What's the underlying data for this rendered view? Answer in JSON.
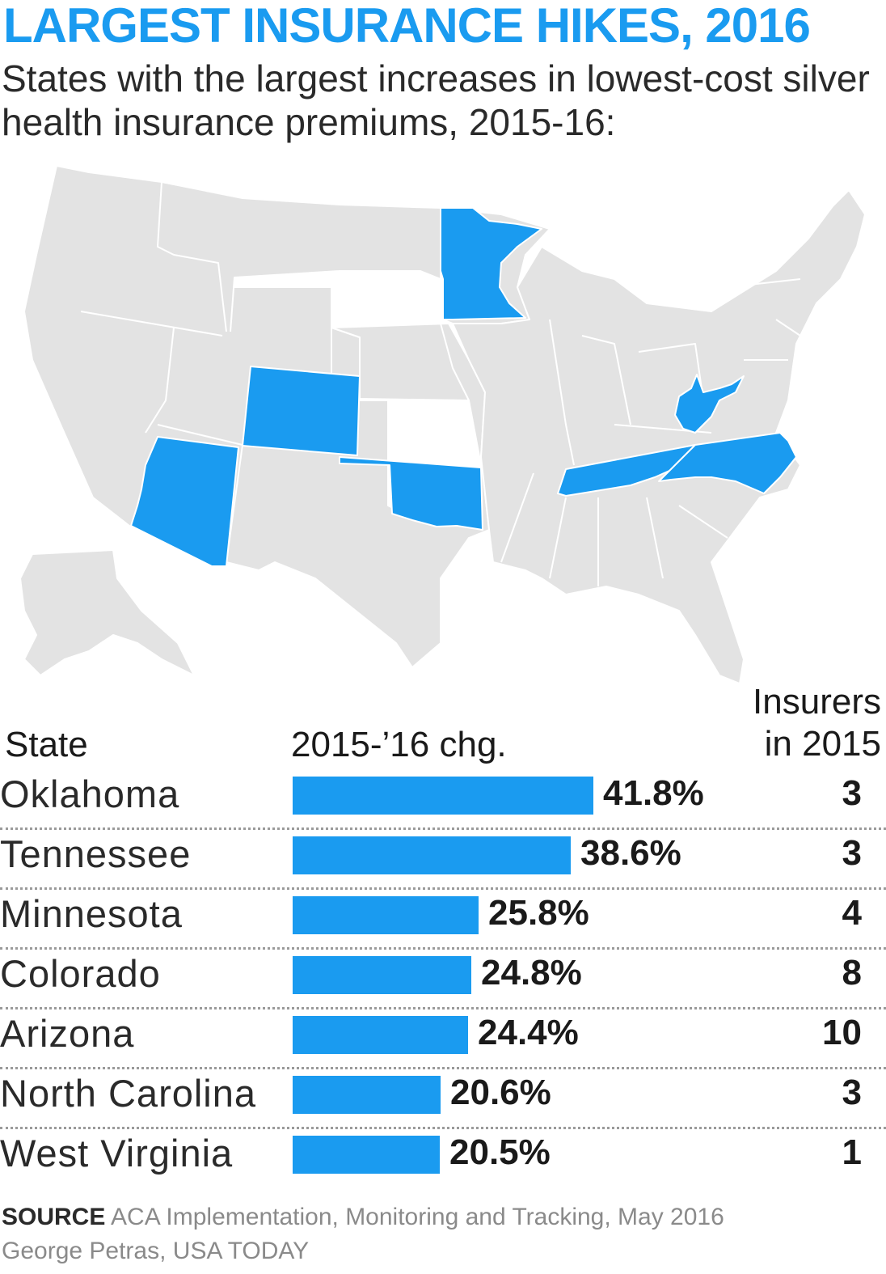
{
  "header": {
    "title": "LARGEST INSURANCE HIKES, 2016",
    "subtitle": "States with the largest increases in lowest-cost silver health insurance premiums, 2015-16:"
  },
  "map": {
    "highlighted_states": [
      "Minnesota",
      "Colorado",
      "Arizona",
      "Oklahoma",
      "West Virginia",
      "Tennessee",
      "North Carolina"
    ],
    "highlight_color": "#1a9bf0",
    "base_color": "#e3e3e3"
  },
  "table": {
    "col_state": "State",
    "col_change": "2015-’16 chg.",
    "col_insurers_line1": "Insurers",
    "col_insurers_line2": "in 2015"
  },
  "chart_data": {
    "type": "bar",
    "categories": [
      "Oklahoma",
      "Tennessee",
      "Minnesota",
      "Colorado",
      "Arizona",
      "North Carolina",
      "West Virginia"
    ],
    "values": [
      41.8,
      38.6,
      25.8,
      24.8,
      24.4,
      20.6,
      20.5
    ],
    "labels": [
      "41.8%",
      "38.6%",
      "25.8%",
      "24.8%",
      "24.4%",
      "20.6%",
      "20.5%"
    ],
    "insurers": [
      "3",
      "3",
      "4",
      "8",
      "10",
      "3",
      "1"
    ],
    "title": "LARGEST INSURANCE HIKES, 2016",
    "xlabel": "2015-’16 chg.",
    "ylabel": "State",
    "bar_color": "#1a9bf0",
    "xlim": [
      0,
      41.8
    ]
  },
  "footer": {
    "source_label": "SOURCE",
    "source_text": "ACA Implementation, Monitoring and Tracking, May 2016",
    "credit": "George Petras, USA TODAY"
  }
}
